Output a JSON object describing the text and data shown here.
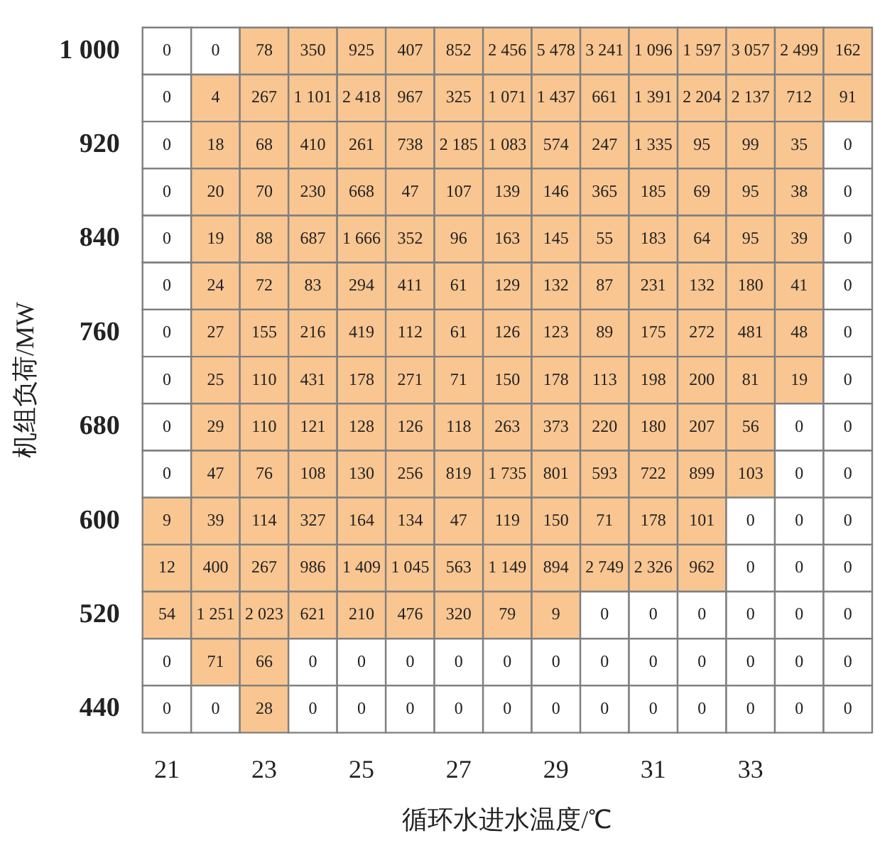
{
  "chart_data": {
    "type": "heatmap",
    "xlabel": "循环水进水温度/℃",
    "ylabel": "机组负荷/MW",
    "color": "#f9c691",
    "categories": [
      "21",
      null,
      "23",
      null,
      "25",
      null,
      "27",
      null,
      "29",
      null,
      "31",
      null,
      "33",
      null,
      null
    ],
    "y_categories": [
      "1 000",
      null,
      "920",
      null,
      "840",
      null,
      "760",
      null,
      "680",
      null,
      "600",
      null,
      "520",
      null,
      "440"
    ],
    "cells": [
      [
        0,
        0,
        78,
        350,
        925,
        407,
        852,
        2456,
        5478,
        3241,
        1096,
        1597,
        3057,
        2499,
        162
      ],
      [
        0,
        4,
        267,
        1101,
        2418,
        967,
        325,
        1071,
        1437,
        661,
        1391,
        2204,
        2137,
        712,
        91
      ],
      [
        0,
        18,
        68,
        410,
        261,
        738,
        2185,
        1083,
        574,
        247,
        1335,
        95,
        99,
        35,
        0
      ],
      [
        0,
        20,
        70,
        230,
        668,
        47,
        107,
        139,
        146,
        365,
        185,
        69,
        95,
        38,
        0
      ],
      [
        0,
        19,
        88,
        687,
        1666,
        352,
        96,
        163,
        145,
        55,
        183,
        64,
        95,
        39,
        0
      ],
      [
        0,
        24,
        72,
        83,
        294,
        411,
        61,
        129,
        132,
        87,
        231,
        132,
        180,
        41,
        0
      ],
      [
        0,
        27,
        155,
        216,
        419,
        112,
        61,
        126,
        123,
        89,
        175,
        272,
        481,
        48,
        0
      ],
      [
        0,
        25,
        110,
        431,
        178,
        271,
        71,
        150,
        178,
        113,
        198,
        200,
        81,
        19,
        0
      ],
      [
        0,
        29,
        110,
        121,
        128,
        126,
        118,
        263,
        373,
        220,
        180,
        207,
        56,
        0,
        0
      ],
      [
        0,
        47,
        76,
        108,
        130,
        256,
        819,
        1735,
        801,
        593,
        722,
        899,
        103,
        0,
        0
      ],
      [
        9,
        39,
        114,
        327,
        164,
        134,
        47,
        119,
        150,
        71,
        178,
        101,
        0,
        0,
        0
      ],
      [
        12,
        400,
        267,
        986,
        1409,
        1045,
        563,
        1149,
        894,
        2749,
        2326,
        962,
        0,
        0,
        0
      ],
      [
        54,
        1251,
        2023,
        621,
        210,
        476,
        320,
        79,
        9,
        0,
        0,
        0,
        0,
        0,
        0
      ],
      [
        0,
        71,
        66,
        0,
        0,
        0,
        0,
        0,
        0,
        0,
        0,
        0,
        0,
        0,
        0
      ],
      [
        0,
        0,
        28,
        0,
        0,
        0,
        0,
        0,
        0,
        0,
        0,
        0,
        0,
        0,
        0
      ]
    ],
    "cell_labels": [
      [
        "0",
        "0",
        "78",
        "350",
        "925",
        "407",
        "852",
        "2 456",
        "5 478",
        "3 241",
        "1 096",
        "1 597",
        "3 057",
        "2 499",
        "162"
      ],
      [
        "0",
        "4",
        "267",
        "1 101",
        "2 418",
        "967",
        "325",
        "1 071",
        "1 437",
        "661",
        "1 391",
        "2 204",
        "2 137",
        "712",
        "91"
      ],
      [
        "0",
        "18",
        "68",
        "410",
        "261",
        "738",
        "2 185",
        "1 083",
        "574",
        "247",
        "1 335",
        "95",
        "99",
        "35",
        "0"
      ],
      [
        "0",
        "20",
        "70",
        "230",
        "668",
        "47",
        "107",
        "139",
        "146",
        "365",
        "185",
        "69",
        "95",
        "38",
        "0"
      ],
      [
        "0",
        "19",
        "88",
        "687",
        "1 666",
        "352",
        "96",
        "163",
        "145",
        "55",
        "183",
        "64",
        "95",
        "39",
        "0"
      ],
      [
        "0",
        "24",
        "72",
        "83",
        "294",
        "411",
        "61",
        "129",
        "132",
        "87",
        "231",
        "132",
        "180",
        "41",
        "0"
      ],
      [
        "0",
        "27",
        "155",
        "216",
        "419",
        "112",
        "61",
        "126",
        "123",
        "89",
        "175",
        "272",
        "481",
        "48",
        "0"
      ],
      [
        "0",
        "25",
        "110",
        "431",
        "178",
        "271",
        "71",
        "150",
        "178",
        "113",
        "198",
        "200",
        "81",
        "19",
        "0"
      ],
      [
        "0",
        "29",
        "110",
        "121",
        "128",
        "126",
        "118",
        "263",
        "373",
        "220",
        "180",
        "207",
        "56",
        "0",
        "0"
      ],
      [
        "0",
        "47",
        "76",
        "108",
        "130",
        "256",
        "819",
        "1 735",
        "801",
        "593",
        "722",
        "899",
        "103",
        "0",
        "0"
      ],
      [
        "9",
        "39",
        "114",
        "327",
        "164",
        "134",
        "47",
        "119",
        "150",
        "71",
        "178",
        "101",
        "0",
        "0",
        "0"
      ],
      [
        "12",
        "400",
        "267",
        "986",
        "1 409",
        "1 045",
        "563",
        "1 149",
        "894",
        "2 749",
        "2 326",
        "962",
        "0",
        "0",
        "0"
      ],
      [
        "54",
        "1 251",
        "2 023",
        "621",
        "210",
        "476",
        "320",
        "79",
        "9",
        "0",
        "0",
        "0",
        "0",
        "0",
        "0"
      ],
      [
        "0",
        "71",
        "66",
        "0",
        "0",
        "0",
        "0",
        "0",
        "0",
        "0",
        "0",
        "0",
        "0",
        "0",
        "0"
      ],
      [
        "0",
        "0",
        "28",
        "0",
        "0",
        "0",
        "0",
        "0",
        "0",
        "0",
        "0",
        "0",
        "0",
        "0",
        "0"
      ]
    ]
  }
}
